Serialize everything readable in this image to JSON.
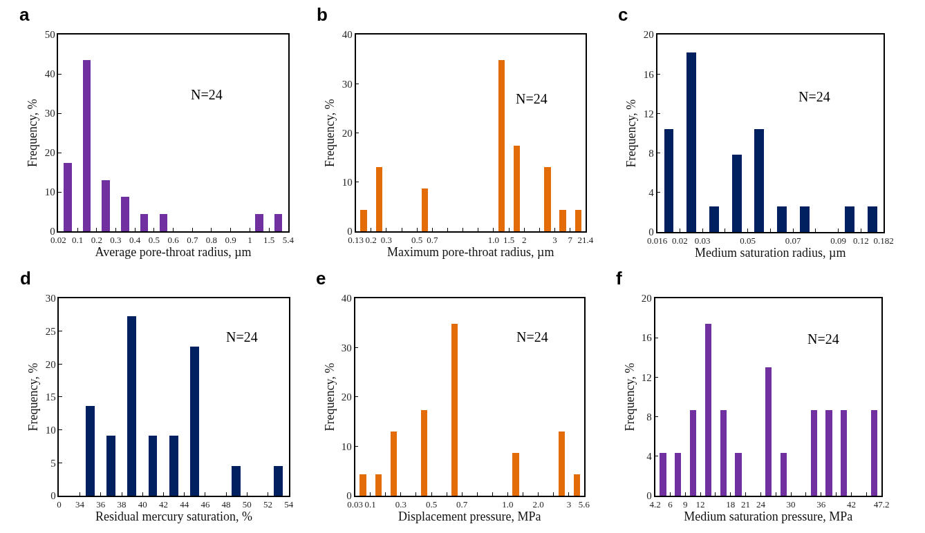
{
  "chart_data": [
    {
      "type": "bar",
      "title": "a",
      "xlabel": "Average pore-throat radius, µm",
      "ylabel": "Frequency, %",
      "color": "#7030a0",
      "annotations": [
        "N=24"
      ],
      "categories": [
        "0.02",
        null,
        "0.1",
        null,
        "0.2",
        null,
        "0.3",
        null,
        "0.4",
        null,
        "0.5",
        null,
        "0.6",
        null,
        "0.7",
        null,
        "0.8",
        null,
        "0.9",
        null,
        "1",
        null,
        "1.5",
        null,
        "5.4"
      ],
      "values": [
        null,
        17.4,
        null,
        43.5,
        null,
        13.0,
        null,
        8.7,
        null,
        4.3,
        null,
        4.3,
        null,
        null,
        null,
        null,
        null,
        null,
        null,
        null,
        null,
        4.3,
        null,
        4.3,
        null
      ],
      "ylim": [
        0,
        50
      ],
      "yticks": [
        0,
        10,
        20,
        30,
        40,
        50
      ]
    },
    {
      "type": "bar",
      "title": "b",
      "xlabel": "Maximum pore-throat radius, µm",
      "ylabel": "Frequency, %",
      "color": "#e36c09",
      "annotations": [
        "N=24"
      ],
      "categories": [
        "0.13",
        null,
        "0.2",
        null,
        "0.3",
        null,
        null,
        null,
        "0.5",
        null,
        "0.7",
        null,
        null,
        null,
        null,
        null,
        null,
        null,
        "1.0",
        null,
        "1.5",
        null,
        "2",
        null,
        null,
        null,
        "3",
        null,
        "7",
        null,
        "21.4"
      ],
      "values": [
        null,
        4.3,
        null,
        13.0,
        null,
        null,
        null,
        null,
        null,
        8.7,
        null,
        null,
        null,
        null,
        null,
        null,
        null,
        null,
        null,
        34.8,
        null,
        17.4,
        null,
        null,
        null,
        13.0,
        null,
        4.3,
        null,
        4.3,
        null
      ],
      "ylim": [
        0,
        40
      ],
      "yticks": [
        0,
        10,
        20,
        30,
        40
      ]
    },
    {
      "type": "bar",
      "title": "c",
      "xlabel": "Medium saturation radius, µm",
      "ylabel": "Frequency, %",
      "color": "#002060",
      "annotations": [
        "N=24"
      ],
      "categories": [
        "0.016",
        null,
        "0.02",
        null,
        "0.03",
        null,
        null,
        null,
        "0.05",
        null,
        null,
        null,
        "0.07",
        null,
        null,
        null,
        "0.09",
        null,
        "0.12",
        null,
        "0.182"
      ],
      "values": [
        null,
        10.4,
        null,
        18.2,
        null,
        2.6,
        null,
        7.8,
        null,
        10.4,
        null,
        2.6,
        null,
        2.6,
        null,
        null,
        null,
        2.6,
        null,
        2.6,
        null
      ],
      "ylim": [
        0,
        20
      ],
      "yticks": [
        0,
        4,
        8,
        12,
        16,
        20
      ]
    },
    {
      "type": "bar",
      "title": "d",
      "xlabel": "Residual mercury saturation, %",
      "ylabel": "Frequency, %",
      "color": "#002060",
      "annotations": [
        "N=24"
      ],
      "categories": [
        "0",
        null,
        "34",
        null,
        "36",
        null,
        "38",
        null,
        "40",
        null,
        "42",
        null,
        "44",
        null,
        "46",
        null,
        "48",
        null,
        "50",
        null,
        "52",
        null,
        "54"
      ],
      "values": [
        null,
        null,
        null,
        13.6,
        null,
        9.1,
        null,
        27.3,
        null,
        9.1,
        null,
        9.1,
        null,
        22.7,
        null,
        null,
        null,
        4.5,
        null,
        null,
        null,
        4.5,
        null
      ],
      "ylim": [
        0,
        30
      ],
      "yticks": [
        0,
        5,
        10,
        15,
        20,
        25,
        30
      ]
    },
    {
      "type": "bar",
      "title": "e",
      "xlabel": "Displacement pressure, MPa",
      "ylabel": "Frequency, %",
      "color": "#e36c09",
      "annotations": [
        "N=24"
      ],
      "categories": [
        "0.03",
        null,
        "0.1",
        null,
        null,
        null,
        "0.3",
        null,
        null,
        null,
        "0.5",
        null,
        null,
        null,
        "0.7",
        null,
        null,
        null,
        null,
        null,
        "1.0",
        null,
        null,
        null,
        "2.0",
        null,
        null,
        null,
        "3",
        null,
        "5.6"
      ],
      "values": [
        null,
        4.3,
        null,
        4.3,
        null,
        13.0,
        null,
        null,
        null,
        17.4,
        null,
        null,
        null,
        34.8,
        null,
        null,
        null,
        null,
        null,
        null,
        null,
        8.7,
        null,
        null,
        null,
        null,
        null,
        13.0,
        null,
        4.3,
        null
      ],
      "ylim": [
        0,
        40
      ],
      "yticks": [
        0,
        10,
        20,
        30,
        40
      ]
    },
    {
      "type": "bar",
      "title": "f",
      "xlabel": "Medium saturation pressure, MPa",
      "ylabel": "Frequency, %",
      "color": "#7030a0",
      "annotations": [
        "N=24"
      ],
      "categories": [
        "4.2",
        null,
        "6",
        null,
        "9",
        null,
        "12",
        null,
        null,
        null,
        "18",
        null,
        "21",
        null,
        "24",
        null,
        null,
        null,
        "30",
        null,
        null,
        null,
        "36",
        null,
        null,
        null,
        "42",
        null,
        null,
        null,
        "47.2"
      ],
      "values": [
        null,
        4.3,
        null,
        4.3,
        null,
        8.7,
        null,
        17.4,
        null,
        8.7,
        null,
        4.3,
        null,
        null,
        null,
        13.0,
        null,
        4.3,
        null,
        null,
        null,
        8.7,
        null,
        8.7,
        null,
        8.7,
        null,
        null,
        null,
        8.7,
        null
      ],
      "ylim": [
        0,
        20
      ],
      "yticks": [
        0,
        4,
        8,
        12,
        16,
        20
      ]
    }
  ]
}
